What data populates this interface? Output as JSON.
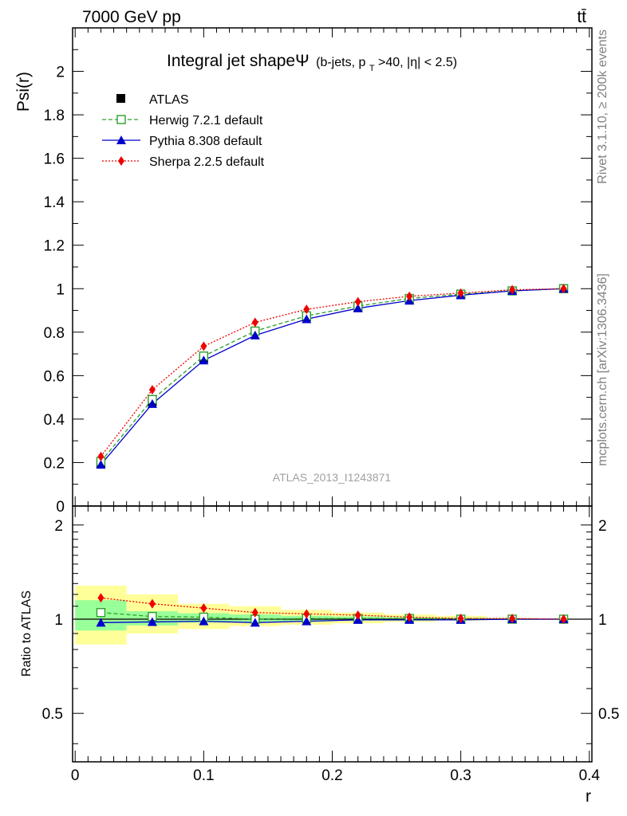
{
  "header": {
    "left": "7000 GeV pp",
    "right": "tt̄"
  },
  "side_texts": {
    "rivet": "Rivet 3.1.10, ≥ 200k events",
    "mcplots": "mcplots.cern.ch [arXiv:1306.3436]"
  },
  "title": {
    "main": "Integral jet shapeΨ",
    "sub_a": "(b-jets, p",
    "sub_b": "T",
    "sub_c": ">40, |η| < 2.5)"
  },
  "watermark": "ATLAS_2013_I1243871",
  "colors": {
    "atlas": "#000000",
    "herwig": "#2ca02c",
    "pythia": "#0000cc",
    "sherpa": "#ee0000",
    "band_inner": "#99ff99",
    "band_outer": "#ffff99"
  },
  "chart_data": [
    {
      "type": "line",
      "ylabel": "Psi(r)",
      "ylim": [
        0,
        2.2
      ],
      "xlim": [
        -0.002,
        0.402
      ],
      "yticks": [
        0,
        0.2,
        0.4,
        0.6,
        0.8,
        1,
        1.2,
        1.4,
        1.6,
        1.8,
        2
      ],
      "ytick_labels": [
        "0",
        "0.2",
        "0.4",
        "0.6",
        "0.8",
        "1",
        "1.2",
        "1.4",
        "1.6",
        "1.8",
        "2"
      ],
      "x": [
        0.02,
        0.06,
        0.1,
        0.14,
        0.18,
        0.22,
        0.26,
        0.3,
        0.34,
        0.38
      ],
      "series": [
        {
          "name": "ATLAS",
          "values": [
            0.195,
            0.48,
            0.68,
            0.805,
            0.87,
            0.915,
            0.95,
            0.975,
            0.99,
            1.0
          ]
        },
        {
          "name": "Herwig 7.2.1 default",
          "values": [
            0.205,
            0.49,
            0.69,
            0.805,
            0.875,
            0.92,
            0.955,
            0.975,
            0.99,
            1.0
          ]
        },
        {
          "name": "Pythia 8.308 default",
          "values": [
            0.19,
            0.47,
            0.67,
            0.785,
            0.86,
            0.91,
            0.945,
            0.97,
            0.99,
            1.0
          ]
        },
        {
          "name": "Sherpa 2.2.5 default",
          "values": [
            0.228,
            0.535,
            0.735,
            0.845,
            0.905,
            0.94,
            0.965,
            0.98,
            0.995,
            1.0
          ]
        }
      ],
      "legend_placement": "top-left"
    },
    {
      "type": "line",
      "ylabel": "Ratio to ATLAS",
      "xlabel": "r",
      "ylim": [
        0.35,
        2.3
      ],
      "xlim": [
        -0.002,
        0.402
      ],
      "yticks": [
        0.5,
        1,
        2
      ],
      "ytick_labels": [
        "0.5",
        "1",
        "2"
      ],
      "xticks": [
        0,
        0.1,
        0.2,
        0.3,
        0.4
      ],
      "xtick_labels": [
        "0",
        "0.1",
        "0.2",
        "0.3",
        "0.4"
      ],
      "x": [
        0.02,
        0.06,
        0.1,
        0.14,
        0.18,
        0.22,
        0.26,
        0.3,
        0.34,
        0.38
      ],
      "bands": {
        "edges": [
          0.0,
          0.04,
          0.08,
          0.12,
          0.16,
          0.2,
          0.24,
          0.28,
          0.32,
          0.36,
          0.4
        ],
        "inner_lo": [
          0.92,
          0.955,
          0.975,
          0.98,
          0.985,
          0.99,
          0.99,
          0.995,
          0.998,
          1.0
        ],
        "inner_hi": [
          1.15,
          1.06,
          1.045,
          1.035,
          1.025,
          1.02,
          1.015,
          1.01,
          1.005,
          1.0
        ],
        "outer_lo": [
          0.83,
          0.9,
          0.93,
          0.95,
          0.96,
          0.97,
          0.98,
          0.99,
          0.995,
          1.0
        ],
        "outer_hi": [
          1.28,
          1.2,
          1.12,
          1.1,
          1.07,
          1.05,
          1.035,
          1.025,
          1.01,
          1.0
        ]
      },
      "series": [
        {
          "name": "Herwig 7.2.1 default",
          "values": [
            1.05,
            1.02,
            1.015,
            1.0,
            1.005,
            1.005,
            1.005,
            1.0,
            1.0,
            1.0
          ]
        },
        {
          "name": "Pythia 8.308 default",
          "values": [
            0.975,
            0.98,
            0.985,
            0.975,
            0.985,
            0.995,
            0.995,
            0.995,
            1.0,
            1.0
          ]
        },
        {
          "name": "Sherpa 2.2.5 default",
          "values": [
            1.17,
            1.12,
            1.085,
            1.05,
            1.04,
            1.03,
            1.015,
            1.005,
            1.005,
            1.0
          ]
        }
      ]
    }
  ]
}
